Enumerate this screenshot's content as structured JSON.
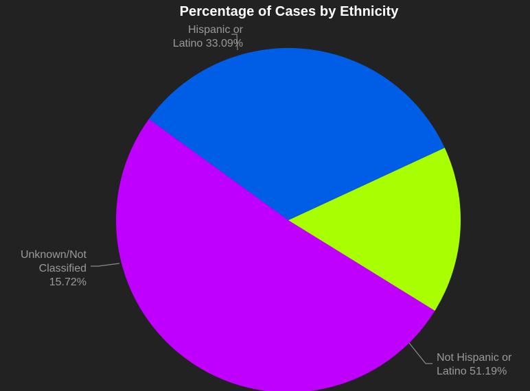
{
  "chart_data": {
    "type": "pie",
    "title": "Percentage of Cases by Ethnicity",
    "slices": [
      {
        "label_lines": [
          "Not Hispanic or",
          "Latino 51.19%"
        ],
        "name": "Not Hispanic or Latino",
        "value": 51.19,
        "color": "#c000ff"
      },
      {
        "label_lines": [
          "Unknown/Not",
          "Classified",
          "15.72%"
        ],
        "name": "Unknown/Not Classified",
        "value": 15.72,
        "color": "#a8ff00"
      },
      {
        "label_lines": [
          "Hispanic or",
          "Latino 33.09%"
        ],
        "name": "Hispanic or Latino",
        "value": 33.09,
        "color": "#005ee6"
      }
    ],
    "start_angle_deg": 144
  }
}
